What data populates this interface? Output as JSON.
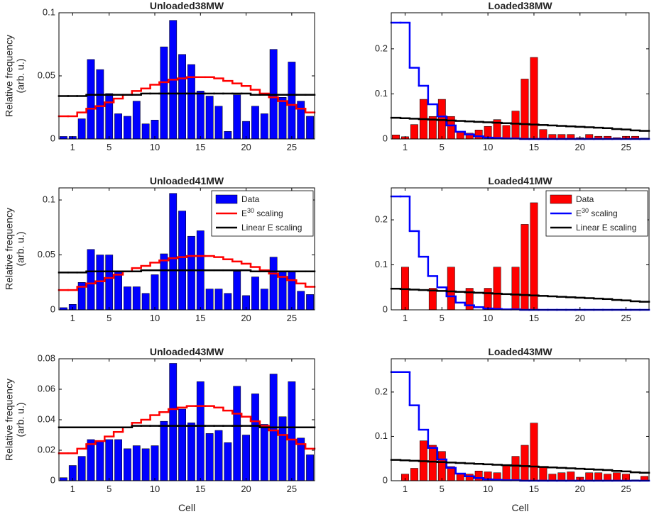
{
  "chart_data": [
    {
      "type": "bar",
      "title": "Unloaded38MW",
      "ylabel": [
        "Relative frequency",
        "(arb. u.)"
      ],
      "x": [
        0,
        1,
        2,
        3,
        4,
        5,
        6,
        7,
        8,
        9,
        10,
        11,
        12,
        13,
        14,
        15,
        16,
        17,
        18,
        19,
        20,
        21,
        22,
        23,
        24,
        25,
        26,
        27
      ],
      "xlim": [
        -0.5,
        27.5
      ],
      "xticks": [
        1,
        5,
        10,
        15,
        20,
        25
      ],
      "ylim": [
        0,
        0.1
      ],
      "yticks": [
        0,
        0.05,
        0.1
      ],
      "series": [
        {
          "type": "bar",
          "color": "#0000ff",
          "values": [
            0.002,
            0.002,
            0.016,
            0.063,
            0.055,
            0.036,
            0.02,
            0.018,
            0.03,
            0.012,
            0.015,
            0.073,
            0.094,
            0.067,
            0.059,
            0.038,
            0.034,
            0.026,
            0.006,
            0.035,
            0.014,
            0.026,
            0.02,
            0.071,
            0.033,
            0.061,
            0.03,
            0.018
          ]
        },
        {
          "type": "step",
          "color": "#ff0000",
          "values": [
            0.018,
            0.018,
            0.021,
            0.024,
            0.026,
            0.029,
            0.032,
            0.035,
            0.038,
            0.04,
            0.043,
            0.045,
            0.047,
            0.048,
            0.049,
            0.049,
            0.049,
            0.048,
            0.046,
            0.044,
            0.042,
            0.039,
            0.036,
            0.033,
            0.03,
            0.027,
            0.024,
            0.021
          ]
        },
        {
          "type": "step",
          "color": "#000000",
          "values": [
            0.034,
            0.034,
            0.034,
            0.035,
            0.035,
            0.035,
            0.035,
            0.035,
            0.035,
            0.036,
            0.036,
            0.036,
            0.036,
            0.036,
            0.036,
            0.036,
            0.036,
            0.036,
            0.036,
            0.036,
            0.036,
            0.035,
            0.035,
            0.035,
            0.035,
            0.035,
            0.035,
            0.035
          ]
        }
      ]
    },
    {
      "type": "bar",
      "title": "Loaded38MW",
      "x": [
        0,
        1,
        2,
        3,
        4,
        5,
        6,
        7,
        8,
        9,
        10,
        11,
        12,
        13,
        14,
        15,
        16,
        17,
        18,
        19,
        20,
        21,
        22,
        23,
        24,
        25,
        26,
        27
      ],
      "xlim": [
        -0.5,
        27.5
      ],
      "xticks": [
        1,
        5,
        10,
        15,
        20,
        25
      ],
      "ylim": [
        0,
        0.28
      ],
      "yticks": [
        0,
        0.1,
        0.2
      ],
      "series": [
        {
          "type": "bar",
          "color": "#ff0000",
          "values": [
            0.009,
            0.005,
            0.032,
            0.088,
            0.05,
            0.088,
            0.05,
            0.015,
            0.013,
            0.02,
            0.028,
            0.043,
            0.03,
            0.062,
            0.133,
            0.181,
            0.021,
            0.01,
            0.01,
            0.01,
            0.003,
            0.01,
            0.006,
            0.006,
            0.003,
            0.006,
            0.006,
            0.002
          ]
        },
        {
          "type": "step",
          "color": "#0000ff",
          "values": [
            0.258,
            0.258,
            0.158,
            0.118,
            0.077,
            0.05,
            0.03,
            0.016,
            0.01,
            0.006,
            0.003,
            0.002,
            0.001,
            0.001,
            0,
            0,
            0,
            0,
            0,
            0,
            0,
            0,
            0,
            0,
            0,
            0,
            0,
            0
          ]
        },
        {
          "type": "step",
          "color": "#000000",
          "values": [
            0.047,
            0.046,
            0.045,
            0.044,
            0.043,
            0.042,
            0.041,
            0.04,
            0.039,
            0.038,
            0.037,
            0.036,
            0.035,
            0.034,
            0.033,
            0.032,
            0.031,
            0.03,
            0.029,
            0.028,
            0.027,
            0.026,
            0.025,
            0.024,
            0.022,
            0.021,
            0.019,
            0.018
          ]
        }
      ]
    },
    {
      "type": "bar",
      "title": "Unloaded41MW",
      "ylabel": [
        "Relative frequency",
        "(arb. u.)"
      ],
      "legend": "northeast",
      "x": [
        0,
        1,
        2,
        3,
        4,
        5,
        6,
        7,
        8,
        9,
        10,
        11,
        12,
        13,
        14,
        15,
        16,
        17,
        18,
        19,
        20,
        21,
        22,
        23,
        24,
        25,
        26,
        27
      ],
      "xlim": [
        -0.5,
        27.5
      ],
      "xticks": [
        1,
        5,
        10,
        15,
        20,
        25
      ],
      "ylim": [
        0,
        0.111
      ],
      "yticks": [
        0,
        0.05,
        0.1
      ],
      "series": [
        {
          "type": "bar",
          "name": "Data",
          "color": "#0000ff",
          "values": [
            0.002,
            0.005,
            0.025,
            0.055,
            0.05,
            0.05,
            0.035,
            0.021,
            0.021,
            0.015,
            0.032,
            0.051,
            0.106,
            0.09,
            0.067,
            0.072,
            0.019,
            0.019,
            0.015,
            0.035,
            0.013,
            0.03,
            0.019,
            0.048,
            0.035,
            0.035,
            0.017,
            0.014
          ]
        },
        {
          "type": "step",
          "name": "E30 scaling",
          "color": "#ff0000",
          "values": [
            0.018,
            0.018,
            0.021,
            0.024,
            0.026,
            0.029,
            0.032,
            0.035,
            0.038,
            0.04,
            0.043,
            0.045,
            0.047,
            0.048,
            0.049,
            0.049,
            0.049,
            0.048,
            0.046,
            0.044,
            0.042,
            0.039,
            0.036,
            0.033,
            0.03,
            0.027,
            0.024,
            0.021
          ]
        },
        {
          "type": "step",
          "name": "Linear E scaling",
          "color": "#000000",
          "values": [
            0.034,
            0.034,
            0.034,
            0.035,
            0.035,
            0.035,
            0.035,
            0.035,
            0.035,
            0.036,
            0.036,
            0.036,
            0.036,
            0.036,
            0.036,
            0.036,
            0.036,
            0.036,
            0.036,
            0.036,
            0.036,
            0.035,
            0.035,
            0.035,
            0.035,
            0.035,
            0.035,
            0.035
          ]
        }
      ]
    },
    {
      "type": "bar",
      "title": "Loaded41MW",
      "legend": "northeast",
      "x": [
        0,
        1,
        2,
        3,
        4,
        5,
        6,
        7,
        8,
        9,
        10,
        11,
        12,
        13,
        14,
        15,
        16,
        17,
        18,
        19,
        20,
        21,
        22,
        23,
        24,
        25,
        26,
        27
      ],
      "xlim": [
        -0.5,
        27.5
      ],
      "xticks": [
        1,
        5,
        10,
        15,
        20,
        25
      ],
      "ylim": [
        0,
        0.271
      ],
      "yticks": [
        0,
        0.1,
        0.2
      ],
      "series": [
        {
          "type": "bar",
          "name": "Data",
          "color": "#ff0000",
          "values": [
            0,
            0.095,
            0,
            0,
            0.048,
            0,
            0.095,
            0,
            0.048,
            0,
            0.048,
            0.095,
            0,
            0.095,
            0.19,
            0.238,
            0,
            0,
            0,
            0,
            0,
            0,
            0,
            0,
            0,
            0,
            0,
            0
          ]
        },
        {
          "type": "step",
          "name": "E30 scaling",
          "color": "#0000ff",
          "values": [
            0.252,
            0.252,
            0.175,
            0.118,
            0.075,
            0.05,
            0.03,
            0.016,
            0.01,
            0.006,
            0.003,
            0.002,
            0.001,
            0.001,
            0,
            0,
            0,
            0,
            0,
            0,
            0,
            0,
            0,
            0,
            0,
            0,
            0,
            0
          ]
        },
        {
          "type": "step",
          "name": "Linear E scaling",
          "color": "#000000",
          "values": [
            0.047,
            0.046,
            0.045,
            0.044,
            0.043,
            0.042,
            0.041,
            0.04,
            0.039,
            0.038,
            0.037,
            0.036,
            0.035,
            0.034,
            0.033,
            0.032,
            0.031,
            0.03,
            0.029,
            0.028,
            0.027,
            0.026,
            0.025,
            0.024,
            0.022,
            0.021,
            0.019,
            0.018
          ]
        }
      ]
    },
    {
      "type": "bar",
      "title": "Unloaded43MW",
      "ylabel": [
        "Relative frequency",
        "(arb. u.)"
      ],
      "xlabel": "Cell",
      "x": [
        0,
        1,
        2,
        3,
        4,
        5,
        6,
        7,
        8,
        9,
        10,
        11,
        12,
        13,
        14,
        15,
        16,
        17,
        18,
        19,
        20,
        21,
        22,
        23,
        24,
        25,
        26,
        27
      ],
      "xlim": [
        -0.5,
        27.5
      ],
      "xticks": [
        1,
        5,
        10,
        15,
        20,
        25
      ],
      "ylim": [
        0,
        0.08
      ],
      "yticks": [
        0,
        0.02,
        0.04,
        0.06,
        0.08
      ],
      "series": [
        {
          "type": "bar",
          "color": "#0000ff",
          "values": [
            0.002,
            0.01,
            0.016,
            0.027,
            0.026,
            0.027,
            0.027,
            0.021,
            0.023,
            0.021,
            0.023,
            0.039,
            0.077,
            0.047,
            0.038,
            0.065,
            0.031,
            0.033,
            0.025,
            0.062,
            0.03,
            0.057,
            0.037,
            0.07,
            0.042,
            0.065,
            0.028,
            0.017
          ]
        },
        {
          "type": "step",
          "color": "#ff0000",
          "values": [
            0.018,
            0.018,
            0.021,
            0.024,
            0.026,
            0.029,
            0.032,
            0.035,
            0.038,
            0.04,
            0.043,
            0.045,
            0.047,
            0.048,
            0.049,
            0.049,
            0.049,
            0.048,
            0.046,
            0.044,
            0.042,
            0.039,
            0.036,
            0.033,
            0.03,
            0.027,
            0.024,
            0.021
          ]
        },
        {
          "type": "step",
          "color": "#000000",
          "values": [
            0.035,
            0.035,
            0.035,
            0.035,
            0.035,
            0.035,
            0.035,
            0.035,
            0.036,
            0.036,
            0.036,
            0.036,
            0.036,
            0.036,
            0.036,
            0.036,
            0.036,
            0.036,
            0.036,
            0.036,
            0.036,
            0.036,
            0.035,
            0.035,
            0.035,
            0.035,
            0.035,
            0.035
          ]
        }
      ]
    },
    {
      "type": "bar",
      "title": "Loaded43MW",
      "xlabel": "Cell",
      "x": [
        0,
        1,
        2,
        3,
        4,
        5,
        6,
        7,
        8,
        9,
        10,
        11,
        12,
        13,
        14,
        15,
        16,
        17,
        18,
        19,
        20,
        21,
        22,
        23,
        24,
        25,
        26,
        27
      ],
      "xlim": [
        -0.5,
        27.5
      ],
      "xticks": [
        1,
        5,
        10,
        15,
        20,
        25
      ],
      "ylim": [
        0,
        0.275
      ],
      "yticks": [
        0,
        0.1,
        0.2
      ],
      "series": [
        {
          "type": "bar",
          "color": "#ff0000",
          "values": [
            0,
            0.015,
            0.028,
            0.09,
            0.08,
            0.066,
            0.032,
            0.016,
            0.015,
            0.022,
            0.02,
            0.018,
            0.035,
            0.055,
            0.08,
            0.13,
            0.032,
            0.015,
            0.018,
            0.02,
            0.008,
            0.018,
            0.018,
            0.015,
            0.018,
            0.015,
            0.002,
            0.01
          ]
        },
        {
          "type": "step",
          "color": "#0000ff",
          "values": [
            0.245,
            0.245,
            0.17,
            0.115,
            0.074,
            0.048,
            0.029,
            0.016,
            0.01,
            0.006,
            0.003,
            0.002,
            0.001,
            0.001,
            0,
            0,
            0,
            0,
            0,
            0,
            0,
            0,
            0,
            0,
            0,
            0,
            0,
            0
          ]
        },
        {
          "type": "step",
          "color": "#000000",
          "values": [
            0.047,
            0.046,
            0.045,
            0.044,
            0.043,
            0.042,
            0.041,
            0.04,
            0.039,
            0.038,
            0.037,
            0.036,
            0.035,
            0.034,
            0.033,
            0.032,
            0.031,
            0.03,
            0.029,
            0.028,
            0.027,
            0.026,
            0.025,
            0.024,
            0.022,
            0.021,
            0.019,
            0.018
          ]
        }
      ]
    }
  ]
}
